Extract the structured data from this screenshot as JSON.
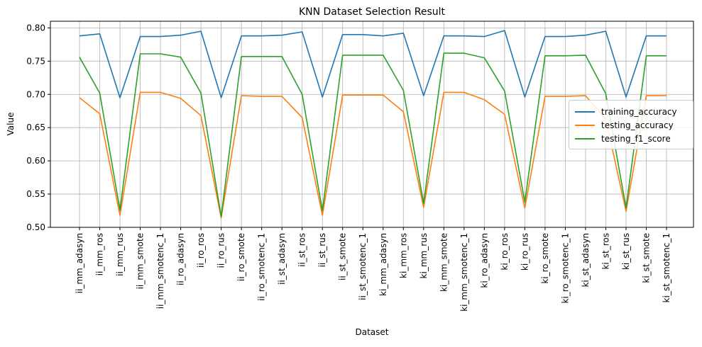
{
  "chart_data": {
    "type": "line",
    "title": "KNN Dataset Selection Result",
    "xlabel": "Dataset",
    "ylabel": "Value",
    "ylim": [
      0.5,
      0.81
    ],
    "yticks": [
      "0.50",
      "0.55",
      "0.60",
      "0.65",
      "0.70",
      "0.75",
      "0.80"
    ],
    "grid": true,
    "legend_position": "center-right",
    "categories": [
      "ii_mm_adasyn",
      "ii_mm_ros",
      "ii_mm_rus",
      "ii_mm_smote",
      "ii_mm_smotenc_1",
      "ii_ro_adasyn",
      "ii_ro_ros",
      "ii_ro_rus",
      "ii_ro_smote",
      "ii_ro_smotenc_1",
      "ii_st_adasyn",
      "ii_st_ros",
      "ii_st_rus",
      "ii_st_smote",
      "ii_st_smotenc_1",
      "ki_mm_adasyn",
      "ki_mm_ros",
      "ki_mm_rus",
      "ki_mm_smote",
      "ki_mm_smotenc_1",
      "ki_ro_adasyn",
      "ki_ro_ros",
      "ki_ro_rus",
      "ki_ro_smote",
      "ki_ro_smotenc_1",
      "ki_st_adasyn",
      "ki_st_ros",
      "ki_st_rus",
      "ki_st_smote",
      "ki_st_smotenc_1"
    ],
    "series": [
      {
        "name": "training_accuracy",
        "color": "#1f77b4",
        "values": [
          0.788,
          0.791,
          0.695,
          0.787,
          0.787,
          0.789,
          0.795,
          0.695,
          0.788,
          0.788,
          0.789,
          0.794,
          0.696,
          0.79,
          0.79,
          0.788,
          0.792,
          0.698,
          0.788,
          0.788,
          0.787,
          0.796,
          0.696,
          0.787,
          0.787,
          0.789,
          0.795,
          0.696,
          0.788,
          0.788
        ]
      },
      {
        "name": "testing_accuracy",
        "color": "#ff7f0e",
        "values": [
          0.695,
          0.671,
          0.518,
          0.703,
          0.703,
          0.694,
          0.668,
          0.514,
          0.698,
          0.697,
          0.697,
          0.665,
          0.518,
          0.699,
          0.699,
          0.699,
          0.674,
          0.53,
          0.703,
          0.703,
          0.692,
          0.67,
          0.529,
          0.697,
          0.697,
          0.698,
          0.663,
          0.524,
          0.698,
          0.698
        ]
      },
      {
        "name": "testing_f1_score",
        "color": "#2ca02c",
        "values": [
          0.756,
          0.702,
          0.526,
          0.761,
          0.761,
          0.756,
          0.702,
          0.516,
          0.757,
          0.757,
          0.757,
          0.7,
          0.525,
          0.759,
          0.759,
          0.759,
          0.706,
          0.536,
          0.762,
          0.762,
          0.755,
          0.705,
          0.538,
          0.758,
          0.758,
          0.759,
          0.701,
          0.529,
          0.758,
          0.758
        ]
      }
    ]
  }
}
